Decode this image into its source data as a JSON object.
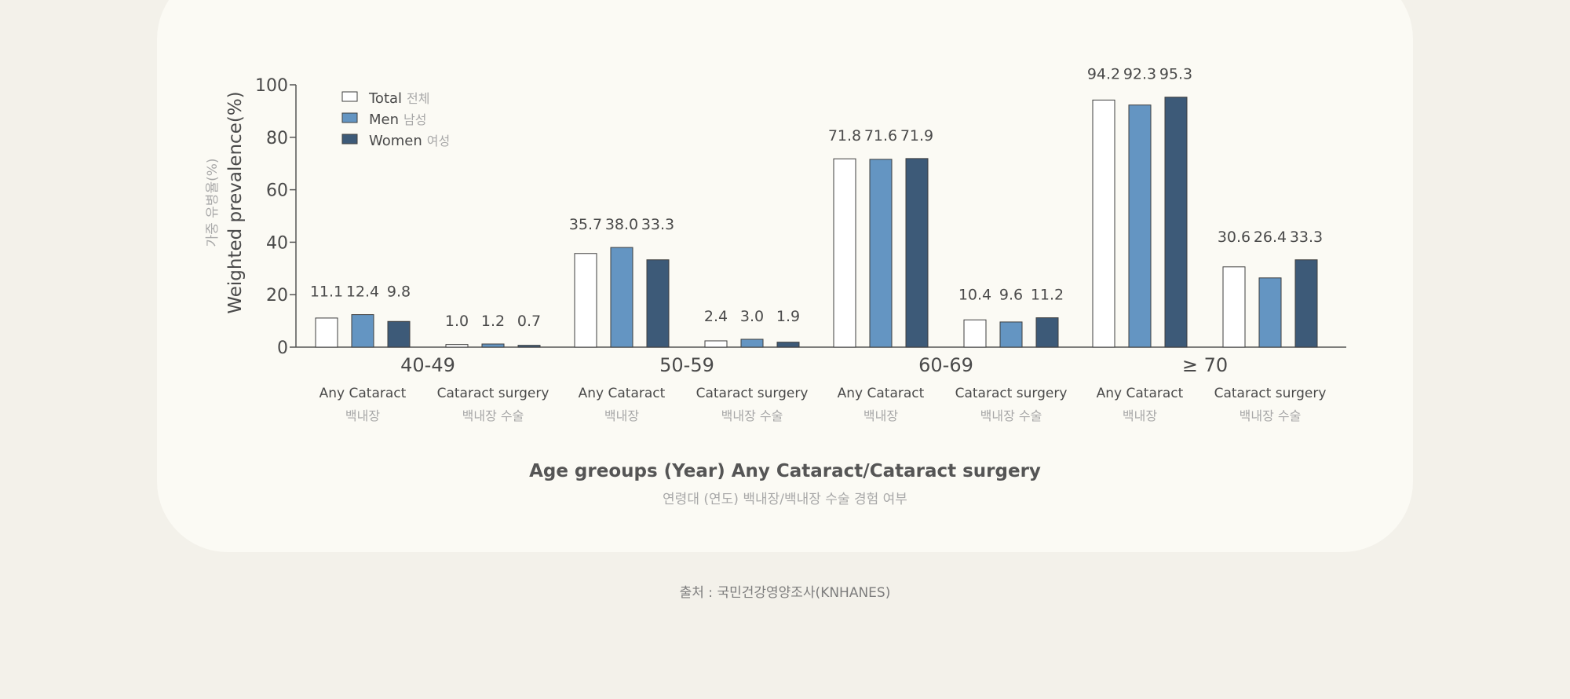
{
  "chart_data": {
    "type": "bar",
    "ylabel": "Weighted prevalence(%)",
    "ylabel_ko": "가중 유병율(%)",
    "xlabel": "Age greoups (Year) Any Cataract/Cataract surgery",
    "xlabel_ko": "연령대 (연도) 백내장/백내장 수술 경험 여부",
    "ylim": [
      0,
      100
    ],
    "yticks": [
      "0",
      "20",
      "40",
      "60",
      "80",
      "100"
    ],
    "legend_position": "top-left",
    "colors": {
      "total": "#ffffff",
      "men": "#6495c2",
      "women": "#3d5a78"
    },
    "series": [
      {
        "name": "Total",
        "name_ko": "전체"
      },
      {
        "name": "Men",
        "name_ko": "남성"
      },
      {
        "name": "Women",
        "name_ko": "여성"
      }
    ],
    "groups": [
      {
        "age": "40-49",
        "subgroups": [
          {
            "label": "Any Cataract",
            "label_ko": "백내장",
            "values": [
              11.1,
              12.4,
              9.8
            ],
            "labels": [
              "11.1",
              "12.4",
              "9.8"
            ]
          },
          {
            "label": "Cataract surgery",
            "label_ko": "백내장 수술",
            "values": [
              1.0,
              1.2,
              0.7
            ],
            "labels": [
              "1.0",
              "1.2",
              "0.7"
            ]
          }
        ]
      },
      {
        "age": "50-59",
        "subgroups": [
          {
            "label": "Any Cataract",
            "label_ko": "백내장",
            "values": [
              35.7,
              38.0,
              33.3
            ],
            "labels": [
              "35.7",
              "38.0",
              "33.3"
            ]
          },
          {
            "label": "Cataract surgery",
            "label_ko": "백내장 수술",
            "values": [
              2.4,
              3.0,
              1.9
            ],
            "labels": [
              "2.4",
              "3.0",
              "1.9"
            ]
          }
        ]
      },
      {
        "age": "60-69",
        "subgroups": [
          {
            "label": "Any Cataract",
            "label_ko": "백내장",
            "values": [
              71.8,
              71.6,
              71.9
            ],
            "labels": [
              "71.8",
              "71.6",
              "71.9"
            ]
          },
          {
            "label": "Cataract surgery",
            "label_ko": "백내장 수술",
            "values": [
              10.4,
              9.6,
              11.2
            ],
            "labels": [
              "10.4",
              "9.6",
              "11.2"
            ]
          }
        ]
      },
      {
        "age": "≥ 70",
        "subgroups": [
          {
            "label": "Any Cataract",
            "label_ko": "백내장",
            "values": [
              94.2,
              92.3,
              95.3
            ],
            "labels": [
              "94.2",
              "92.3",
              "95.3"
            ]
          },
          {
            "label": "Cataract surgery",
            "label_ko": "백내장 수술",
            "values": [
              30.6,
              26.4,
              33.3
            ],
            "labels": [
              "30.6",
              "26.4",
              "33.3"
            ]
          }
        ]
      }
    ]
  },
  "source": "출처 : 국민건강영양조사(KNHANES)"
}
